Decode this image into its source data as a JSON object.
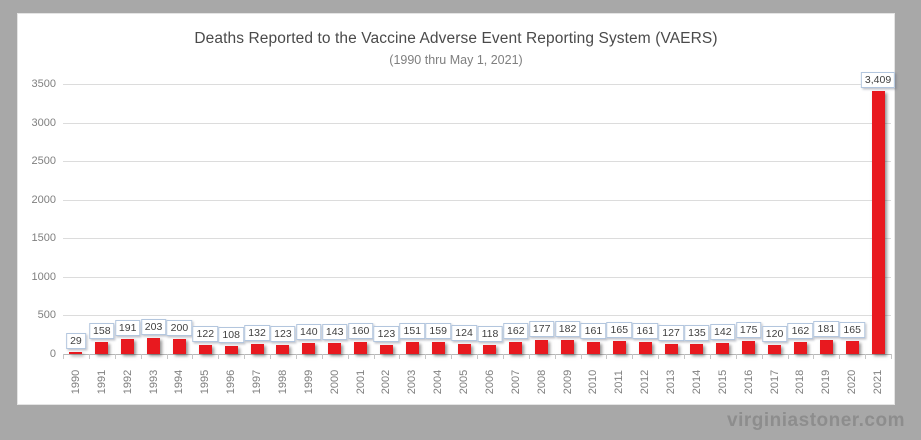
{
  "frame": {
    "watermark": "virginiastoner.com"
  },
  "chart_data": {
    "type": "bar",
    "title": "Deaths Reported to the Vaccine Adverse Event Reporting System (VAERS)",
    "subtitle": "(1990 thru May 1, 2021)",
    "categories": [
      "1990",
      "1991",
      "1992",
      "1993",
      "1994",
      "1995",
      "1996",
      "1997",
      "1998",
      "1999",
      "2000",
      "2001",
      "2002",
      "2003",
      "2004",
      "2005",
      "2006",
      "2007",
      "2008",
      "2009",
      "2010",
      "2011",
      "2012",
      "2013",
      "2014",
      "2015",
      "2016",
      "2017",
      "2018",
      "2019",
      "2020",
      "2021"
    ],
    "values": [
      29,
      158,
      191,
      203,
      200,
      122,
      108,
      132,
      123,
      140,
      143,
      160,
      123,
      151,
      159,
      124,
      118,
      162,
      177,
      182,
      161,
      165,
      161,
      127,
      135,
      142,
      175,
      120,
      162,
      181,
      165,
      3409
    ],
    "value_labels": [
      "29",
      "158",
      "191",
      "203",
      "200",
      "122",
      "108",
      "132",
      "123",
      "140",
      "143",
      "160",
      "123",
      "151",
      "159",
      "124",
      "118",
      "162",
      "177",
      "182",
      "161",
      "165",
      "161",
      "127",
      "135",
      "142",
      "175",
      "120",
      "162",
      "181",
      "165",
      "3,409"
    ],
    "xlabel": "",
    "ylabel": "",
    "ylim": [
      0,
      3500
    ],
    "yticks": [
      0,
      500,
      1000,
      1500,
      2000,
      2500,
      3000,
      3500
    ],
    "grid": "horizontal only",
    "legend": "none",
    "colors": {
      "bar": "#e8191f",
      "label_box_border": "#b3c6de",
      "label_text": "#3f3f3f",
      "gridline": "#dcdcdc",
      "axis_line": "#b7b7b7",
      "tick_mark": "#c6c6c6",
      "axis_text": "#7f7f7f",
      "title_text": "#4a4a4a",
      "subtitle_text": "#7f7f7f",
      "frame": "#a8a8a8",
      "watermark_text": "#8d8d8d"
    }
  }
}
